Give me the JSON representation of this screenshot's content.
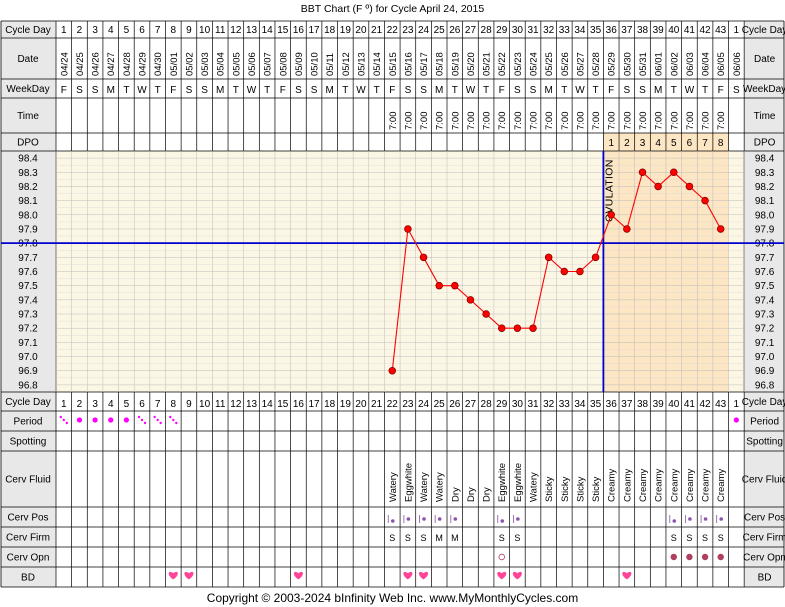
{
  "title": "BBT Chart (F º) for Cycle April 24, 2015",
  "row_labels": {
    "cycle_day": "Cycle Day",
    "date": "Date",
    "weekday": "WeekDay",
    "time": "Time",
    "dpo": "DPO",
    "period": "Period",
    "spotting": "Spotting",
    "cerv_fluid": "Cerv Fluid",
    "cerv_pos": "Cerv Pos",
    "cerv_firm": "Cerv Firm",
    "cerv_opn": "Cerv Opn",
    "bd": "BD"
  },
  "cycle_days": [
    "1",
    "2",
    "3",
    "4",
    "5",
    "6",
    "7",
    "8",
    "9",
    "10",
    "11",
    "12",
    "13",
    "14",
    "15",
    "16",
    "17",
    "18",
    "19",
    "20",
    "21",
    "22",
    "23",
    "24",
    "25",
    "26",
    "27",
    "28",
    "29",
    "30",
    "31",
    "32",
    "33",
    "34",
    "35",
    "36",
    "37",
    "38",
    "39",
    "40",
    "41",
    "42",
    "43",
    "1"
  ],
  "dates": [
    "04/24",
    "04/25",
    "04/26",
    "04/27",
    "04/28",
    "04/29",
    "04/30",
    "05/01",
    "05/02",
    "05/03",
    "05/04",
    "05/05",
    "05/06",
    "05/07",
    "05/08",
    "05/09",
    "05/10",
    "05/11",
    "05/12",
    "05/13",
    "05/14",
    "05/15",
    "05/16",
    "05/17",
    "05/18",
    "05/19",
    "05/20",
    "05/21",
    "05/22",
    "05/23",
    "05/24",
    "05/25",
    "05/26",
    "05/27",
    "05/28",
    "05/29",
    "05/30",
    "05/31",
    "06/01",
    "06/02",
    "06/03",
    "06/04",
    "06/05",
    "06/06"
  ],
  "weekdays": [
    "F",
    "S",
    "S",
    "M",
    "T",
    "W",
    "T",
    "F",
    "S",
    "S",
    "M",
    "T",
    "W",
    "T",
    "F",
    "S",
    "S",
    "M",
    "T",
    "W",
    "T",
    "F",
    "S",
    "S",
    "M",
    "T",
    "W",
    "T",
    "F",
    "S",
    "S",
    "M",
    "T",
    "W",
    "T",
    "F",
    "S",
    "S",
    "M",
    "T",
    "W",
    "T",
    "F",
    "S"
  ],
  "times": [
    "",
    "",
    "",
    "",
    "",
    "",
    "",
    "",
    "",
    "",
    "",
    "",
    "",
    "",
    "",
    "",
    "",
    "",
    "",
    "",
    "",
    "7:00",
    "7:00",
    "7:00",
    "7:00",
    "7:00",
    "7:00",
    "7:00",
    "7:00",
    "7:00",
    "7:00",
    "7:00",
    "7:00",
    "7:00",
    "7:00",
    "7:00",
    "7:00",
    "7:00",
    "7:00",
    "7:00",
    "7:00",
    "7:00",
    "7:00",
    ""
  ],
  "dpo": [
    "",
    "",
    "",
    "",
    "",
    "",
    "",
    "",
    "",
    "",
    "",
    "",
    "",
    "",
    "",
    "",
    "",
    "",
    "",
    "",
    "",
    "",
    "",
    "",
    "",
    "",
    "",
    "",
    "",
    "",
    "",
    "",
    "",
    "",
    "",
    "1",
    "2",
    "3",
    "4",
    "5",
    "6",
    "7",
    "8",
    ""
  ],
  "chart_data": {
    "type": "line",
    "title": "BBT Chart (F º) for Cycle April 24, 2015",
    "y_ticks": [
      "98.4",
      "98.3",
      "98.2",
      "98.1",
      "98.0",
      "97.9",
      "97.8",
      "97.7",
      "97.6",
      "97.5",
      "97.4",
      "97.3",
      "97.2",
      "97.1",
      "97.0",
      "96.9",
      "96.8"
    ],
    "ylim": [
      96.8,
      98.4
    ],
    "x": [
      22,
      23,
      24,
      25,
      26,
      27,
      28,
      29,
      30,
      31,
      32,
      33,
      34,
      35,
      36,
      37,
      38,
      39,
      40,
      41,
      42,
      43
    ],
    "series": [
      {
        "values": [
          96.9,
          97.9,
          97.7,
          97.5,
          97.5,
          97.4,
          97.3,
          97.2,
          97.2,
          97.2,
          97.7,
          97.6,
          97.6,
          97.7,
          98.0,
          97.9,
          98.3,
          98.2,
          98.3,
          98.2,
          98.1,
          97.9
        ]
      }
    ],
    "coverline": 97.8,
    "ovulation_day": 35,
    "ovulation_label": "OVULATION",
    "luteal_shading_from_day": 36,
    "grid": true,
    "colors": {
      "line": "#ff0000",
      "coverline": "#0000cc",
      "chart_bg": "#fcf7e5",
      "luteal_bg": "#fde6c4",
      "label_bg": "#e8e8e8",
      "period_marker": "#ff00ff",
      "heart": "#ff4499",
      "cerv_opn": "#b04060"
    }
  },
  "period": [
    "dots",
    "dot",
    "dot",
    "dot",
    "dot",
    "dots",
    "dots",
    "dots",
    "",
    "",
    "",
    "",
    "",
    "",
    "",
    "",
    "",
    "",
    "",
    "",
    "",
    "",
    "",
    "",
    "",
    "",
    "",
    "",
    "",
    "",
    "",
    "",
    "",
    "",
    "",
    "",
    "",
    "",
    "",
    "",
    "",
    "",
    "",
    "dot"
  ],
  "cerv_fluid": [
    "",
    "",
    "",
    "",
    "",
    "",
    "",
    "",
    "",
    "",
    "",
    "",
    "",
    "",
    "",
    "",
    "",
    "",
    "",
    "",
    "",
    "Watery",
    "Eggwhite",
    "Watery",
    "Watery",
    "Dry",
    "Dry",
    "Dry",
    "Eggwhite",
    "Eggwhite",
    "Watery",
    "Sticky",
    "Sticky",
    "Sticky",
    "Sticky",
    "Creamy",
    "Creamy",
    "Creamy",
    "Creamy",
    "Creamy",
    "Creamy",
    "Creamy",
    "Creamy",
    ""
  ],
  "cerv_pos": [
    "",
    "",
    "",
    "",
    "",
    "",
    "",
    "",
    "",
    "",
    "",
    "",
    "",
    "",
    "",
    "",
    "",
    "",
    "",
    "",
    "",
    "low",
    "med",
    "med",
    "med",
    "med",
    "",
    "",
    "low",
    "med",
    "",
    "",
    "",
    "",
    "",
    "",
    "",
    "",
    "",
    "low",
    "med",
    "med",
    "med",
    ""
  ],
  "cerv_firm": [
    "",
    "",
    "",
    "",
    "",
    "",
    "",
    "",
    "",
    "",
    "",
    "",
    "",
    "",
    "",
    "",
    "",
    "",
    "",
    "",
    "",
    "S",
    "S",
    "S",
    "M",
    "M",
    "",
    "",
    "S",
    "S",
    "",
    "",
    "",
    "",
    "",
    "",
    "",
    "",
    "",
    "S",
    "S",
    "S",
    "S",
    ""
  ],
  "cerv_opn": [
    "",
    "",
    "",
    "",
    "",
    "",
    "",
    "",
    "",
    "",
    "",
    "",
    "",
    "",
    "",
    "",
    "",
    "",
    "",
    "",
    "",
    "",
    "",
    "",
    "",
    "",
    "",
    "",
    "open-small",
    "",
    "",
    "",
    "",
    "",
    "",
    "",
    "",
    "",
    "",
    "filled",
    "filled",
    "filled",
    "filled",
    ""
  ],
  "bd": [
    "",
    "",
    "",
    "",
    "",
    "",
    "",
    "heart",
    "heart",
    "",
    "",
    "",
    "",
    "",
    "",
    "heart",
    "",
    "",
    "",
    "",
    "",
    "",
    "heart",
    "heart",
    "",
    "",
    "",
    "",
    "heart",
    "heart",
    "",
    "",
    "",
    "",
    "",
    "",
    "heart",
    "",
    "",
    "",
    "",
    "",
    "",
    ""
  ],
  "copyright": "Copyright © 2003-2024 bInfinity Web Inc.     www.MyMonthlyCycles.com"
}
